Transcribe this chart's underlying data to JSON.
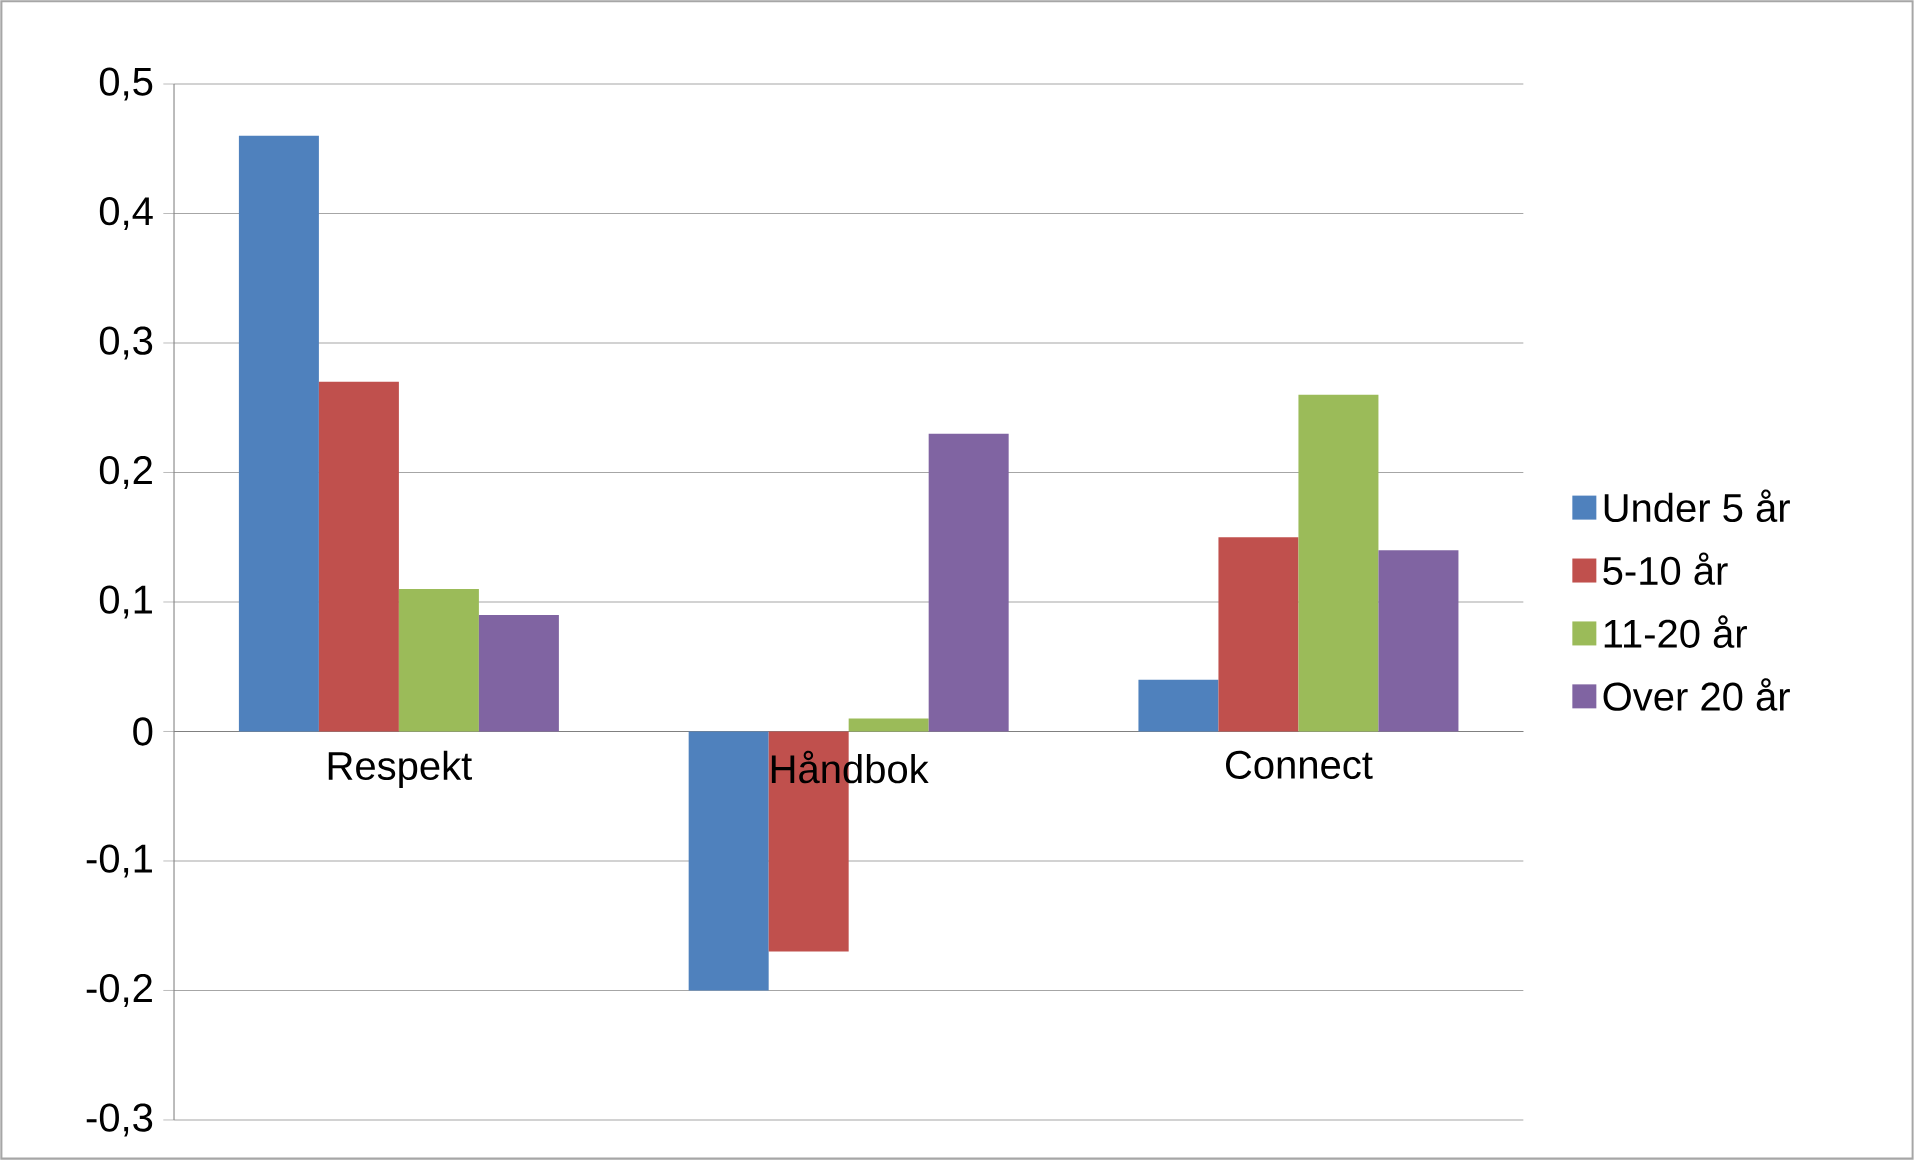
{
  "chart_data": {
    "type": "bar",
    "categories": [
      "Respekt",
      "Håndbok",
      "Connect"
    ],
    "series": [
      {
        "name": "Under 5 år",
        "color": "#4f81bd",
        "values": [
          0.46,
          -0.2,
          0.04
        ]
      },
      {
        "name": "5-10 år",
        "color": "#c0504d",
        "values": [
          0.27,
          -0.17,
          0.15
        ]
      },
      {
        "name": "11-20 år",
        "color": "#9bbb59",
        "values": [
          0.11,
          0.01,
          0.26
        ]
      },
      {
        "name": "Over 20 år",
        "color": "#8064a2",
        "values": [
          0.09,
          0.23,
          0.14
        ]
      }
    ],
    "ylim": [
      -0.3,
      0.5
    ],
    "yticks": [
      {
        "value": -0.3,
        "label": "-0,3"
      },
      {
        "value": -0.2,
        "label": "-0,2"
      },
      {
        "value": -0.1,
        "label": "-0,1"
      },
      0,
      {
        "value": 0.1,
        "label": "0,1"
      },
      {
        "value": 0.2,
        "label": "0,2"
      },
      {
        "value": 0.3,
        "label": "0,3"
      },
      {
        "value": 0.4,
        "label": "0,4"
      },
      {
        "value": 0.5,
        "label": "0,5"
      }
    ],
    "grid": "y",
    "legend": "right"
  }
}
